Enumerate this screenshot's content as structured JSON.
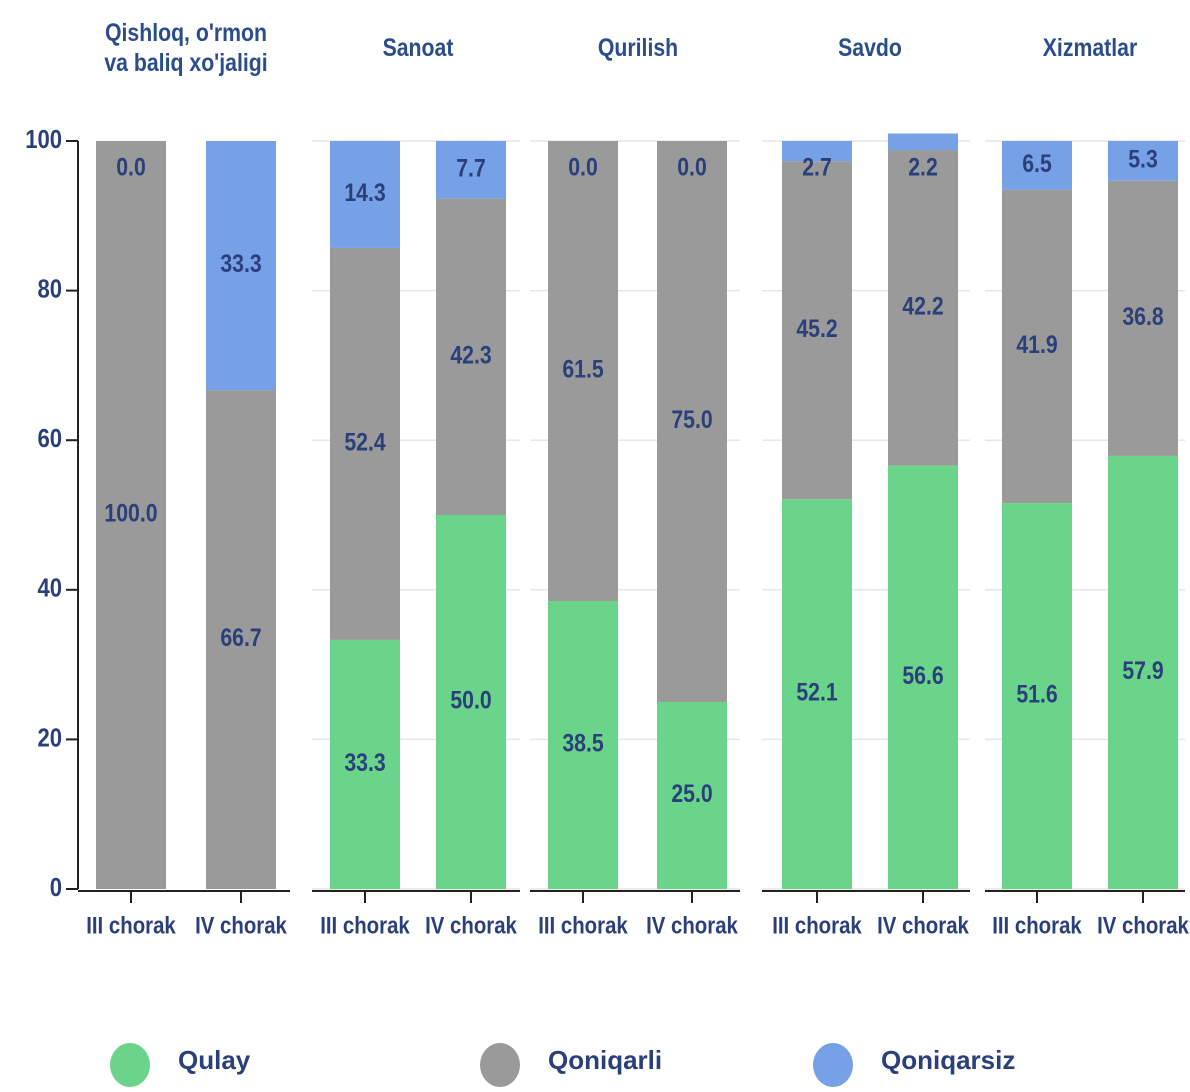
{
  "chart_data": {
    "type": "bar",
    "stacked": true,
    "groups": [
      "Qishloq, o'rmon\nva baliq xo'jaligi",
      "Sanoat",
      "Qurilish",
      "Savdo",
      "Xizmatlar"
    ],
    "categories": [
      "III chorak",
      "IV chorak",
      "III chorak",
      "IV chorak",
      "III chorak",
      "IV chorak",
      "III chorak",
      "IV chorak",
      "III chorak",
      "IV chorak"
    ],
    "series": [
      {
        "name": "Qulay",
        "color": "#6bd48b",
        "values": [
          0,
          0,
          33.3,
          50,
          38.5,
          25,
          52.1,
          56.6,
          51.6,
          57.9
        ],
        "value_labels": [
          "0.0",
          "0.0",
          "33.3",
          "50.0",
          "38.5",
          "25.0",
          "52.1",
          "56.6",
          "51.6",
          "57.9"
        ]
      },
      {
        "name": "Qoniqarli",
        "color": "#9a9a9a",
        "values": [
          100,
          66.7,
          52.4,
          42.3,
          61.5,
          75,
          45.2,
          42.2,
          41.9,
          36.8
        ],
        "value_labels": [
          "100.0",
          "66.7",
          "52.4",
          "42.3",
          "61.5",
          "75.0",
          "45.2",
          "42.2",
          "41.9",
          "36.8"
        ]
      },
      {
        "name": "Qoniqarsiz",
        "color": "#77a1e6",
        "values": [
          0,
          33.3,
          14.3,
          7.7,
          0,
          0,
          2.7,
          2.2,
          6.5,
          5.3
        ],
        "value_labels": [
          "0.0",
          "33.3",
          "14.3",
          "7.7",
          "0.0",
          "0.0",
          "2.7",
          "2.2",
          "6.5",
          "5.3"
        ]
      }
    ],
    "ylim": [
      0,
      100
    ],
    "yticks": [
      0,
      20,
      40,
      60,
      80,
      100
    ],
    "grid": true
  }
}
